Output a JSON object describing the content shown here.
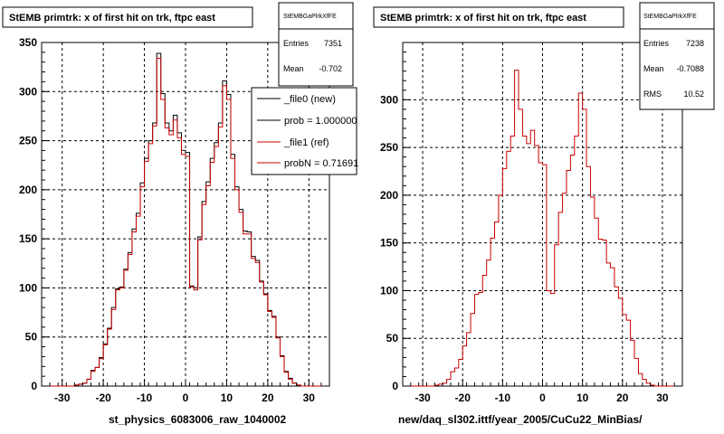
{
  "chart_data": [
    {
      "type": "line",
      "title": "StEMB primtrk: x of first hit on trk, ftpc east",
      "xlabel": "st_physics_6083006_raw_1040002",
      "ylabel": "",
      "xlim": [
        -35,
        35
      ],
      "ylim": [
        0,
        350
      ],
      "xticks": [
        -30,
        -20,
        -10,
        0,
        10,
        20,
        30
      ],
      "yticks": [
        0,
        50,
        100,
        150,
        200,
        250,
        300,
        350
      ],
      "grid": true,
      "bin_width": 1,
      "x_start": -33,
      "stats": {
        "header": "StEMBGaPlrkXfFE",
        "entries_label": "Entries",
        "entries": "7351",
        "mean_label": "Mean",
        "mean": "-0.702"
      },
      "legend": {
        "placement": "top-right",
        "entries": [
          "_file0 (new)",
          "prob = 1.000000",
          "_file1 (ref)",
          "probN = 0.71691"
        ],
        "colors": [
          "#000000",
          "#000000",
          "#cc0000",
          "#cc0000"
        ]
      },
      "series": [
        {
          "name": "_file0 (new)",
          "color": "#000000",
          "values": [
            0,
            0,
            0,
            0,
            0,
            0,
            1,
            2,
            3,
            7,
            16,
            19,
            29,
            43,
            59,
            80,
            99,
            101,
            119,
            136,
            160,
            176,
            207,
            232,
            250,
            268,
            339,
            298,
            268,
            260,
            276,
            258,
            240,
            238,
            102,
            100,
            152,
            188,
            208,
            232,
            248,
            268,
            311,
            297,
            236,
            203,
            180,
            158,
            157,
            132,
            128,
            107,
            94,
            77,
            71,
            50,
            31,
            15,
            8,
            3,
            1,
            0,
            0,
            0,
            0,
            0
          ]
        },
        {
          "name": "_file1 (ref)",
          "color": "#cc0000",
          "values": [
            0,
            0,
            0,
            0,
            0,
            0,
            1,
            2,
            3,
            7,
            15,
            19,
            28,
            42,
            58,
            78,
            98,
            100,
            118,
            134,
            157,
            173,
            203,
            229,
            247,
            265,
            334,
            292,
            263,
            256,
            271,
            253,
            236,
            234,
            101,
            98,
            149,
            185,
            204,
            228,
            244,
            264,
            306,
            292,
            232,
            200,
            177,
            155,
            155,
            130,
            126,
            106,
            93,
            76,
            70,
            49,
            30,
            14,
            7,
            3,
            1,
            0,
            0,
            0,
            0,
            0
          ]
        }
      ]
    },
    {
      "type": "line",
      "title": "StEMB primtrk: x of first hit on trk, ftpc east",
      "xlabel": "new/daq_sl302.ittf/year_2005/CuCu22_MinBias/",
      "ylabel": "",
      "xlim": [
        -35,
        35
      ],
      "ylim": [
        0,
        360
      ],
      "xticks": [
        -30,
        -20,
        -10,
        0,
        10,
        20,
        30
      ],
      "yticks": [
        0,
        50,
        100,
        150,
        200,
        250,
        300
      ],
      "grid": true,
      "bin_width": 1,
      "x_start": -33,
      "stats": {
        "header": "StEMBGaPlrkXfFE",
        "entries_label": "Entries",
        "entries": "7238",
        "mean_label": "Mean",
        "mean": "-0.7088",
        "rms_label": "RMS",
        "rms": "10.52"
      },
      "series": [
        {
          "name": "",
          "color": "#cc0000",
          "values": [
            0,
            0,
            0,
            0,
            0,
            0,
            1,
            2,
            3,
            7,
            15,
            19,
            28,
            42,
            56,
            76,
            96,
            98,
            116,
            132,
            155,
            172,
            200,
            228,
            246,
            262,
            331,
            290,
            262,
            254,
            268,
            252,
            234,
            232,
            100,
            97,
            148,
            182,
            202,
            226,
            242,
            262,
            307,
            290,
            230,
            198,
            176,
            154,
            153,
            129,
            124,
            104,
            92,
            75,
            69,
            48,
            29,
            13,
            7,
            3,
            1,
            0,
            0,
            0,
            0,
            0
          ]
        }
      ]
    }
  ]
}
